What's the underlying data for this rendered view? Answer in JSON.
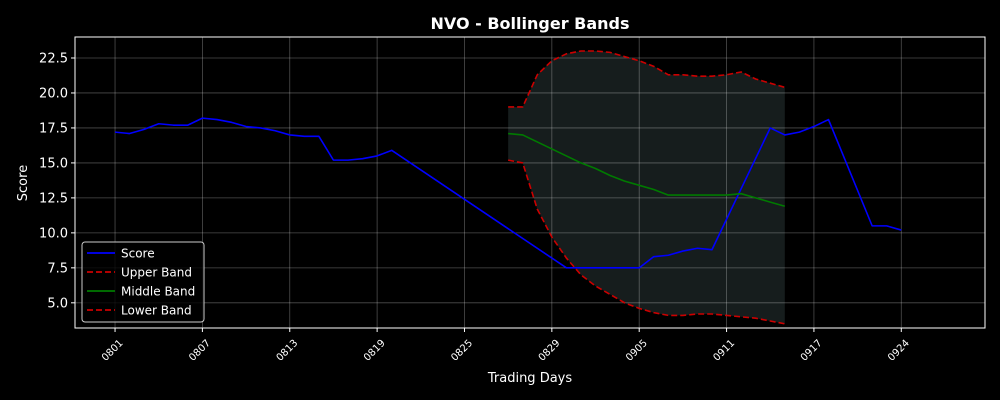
{
  "chart_data": {
    "type": "line",
    "title": "NVO - Bollinger Bands",
    "xlabel": "Trading Days",
    "ylabel": "Score",
    "ylim": [
      3.2,
      24.0
    ],
    "y_ticks": [
      5.0,
      7.5,
      10.0,
      12.5,
      15.0,
      17.5,
      20.0,
      22.5
    ],
    "y_tick_labels": [
      "5.0",
      "7.5",
      "10.0",
      "12.5",
      "15.0",
      "17.5",
      "20.0",
      "22.5"
    ],
    "x_tick_labels": [
      "0801",
      "0807",
      "0813",
      "0819",
      "0825",
      "0829",
      "0905",
      "0911",
      "0917",
      "0924"
    ],
    "x_tick_index": [
      0,
      6,
      12,
      18,
      24,
      30,
      36,
      42,
      48,
      54
    ],
    "x_range": [
      -2.75,
      59.75
    ],
    "grid": true,
    "legend_position": "lower-left",
    "band_fill_color": "#161d1d",
    "series": [
      {
        "name": "Score",
        "color": "#0000ff",
        "dash": "solid",
        "values": [
          17.2,
          17.1,
          17.4,
          17.8,
          17.7,
          17.7,
          18.2,
          18.1,
          17.9,
          17.6,
          17.5,
          17.3,
          17.0,
          16.9,
          16.9,
          15.2,
          15.2,
          15.3,
          15.5,
          15.9,
          7.5,
          7.5,
          7.5,
          7.5,
          8.3,
          8.4,
          8.7,
          8.9,
          8.8,
          17.5,
          17.0,
          17.2,
          17.6,
          18.1,
          10.5,
          10.5,
          10.2
        ],
        "x_index": [
          0,
          1,
          2,
          3,
          4,
          5,
          6,
          7,
          8,
          9,
          10,
          11,
          12,
          13,
          14,
          15,
          16,
          17,
          18,
          19,
          31,
          32,
          33,
          36,
          37,
          38,
          39,
          40,
          41,
          45,
          46,
          47,
          48,
          49,
          52,
          53,
          54
        ]
      },
      {
        "name": "Upper Band",
        "color": "#cc0000",
        "dash": "dashed",
        "values": [
          19.0,
          19.0,
          21.3,
          22.3,
          22.8,
          23.0,
          23.0,
          22.9,
          22.6,
          22.3,
          21.9,
          21.3,
          21.3,
          21.2,
          21.2,
          21.3,
          21.5,
          21.0,
          20.7,
          20.4
        ],
        "x_index": [
          27,
          28,
          29,
          30,
          31,
          32,
          33,
          34,
          35,
          36,
          37,
          38,
          39,
          40,
          41,
          42,
          43,
          44,
          45,
          46
        ]
      },
      {
        "name": "Middle Band",
        "color": "#007a00",
        "dash": "solid",
        "values": [
          17.1,
          17.0,
          16.5,
          16.0,
          15.5,
          15.0,
          14.6,
          14.1,
          13.7,
          13.4,
          13.1,
          12.7,
          12.7,
          12.7,
          12.7,
          12.7,
          12.8,
          12.5,
          12.2,
          11.9
        ],
        "x_index": [
          27,
          28,
          29,
          30,
          31,
          32,
          33,
          34,
          35,
          36,
          37,
          38,
          39,
          40,
          41,
          42,
          43,
          44,
          45,
          46
        ]
      },
      {
        "name": "Lower Band",
        "color": "#cc0000",
        "dash": "dashed",
        "values": [
          15.2,
          15.0,
          11.7,
          9.7,
          8.2,
          7.0,
          6.2,
          5.6,
          5.0,
          4.6,
          4.3,
          4.1,
          4.1,
          4.2,
          4.2,
          4.1,
          4.0,
          3.9,
          3.7,
          3.5
        ],
        "x_index": [
          27,
          28,
          29,
          30,
          31,
          32,
          33,
          34,
          35,
          36,
          37,
          38,
          39,
          40,
          41,
          42,
          43,
          44,
          45,
          46
        ]
      }
    ]
  }
}
